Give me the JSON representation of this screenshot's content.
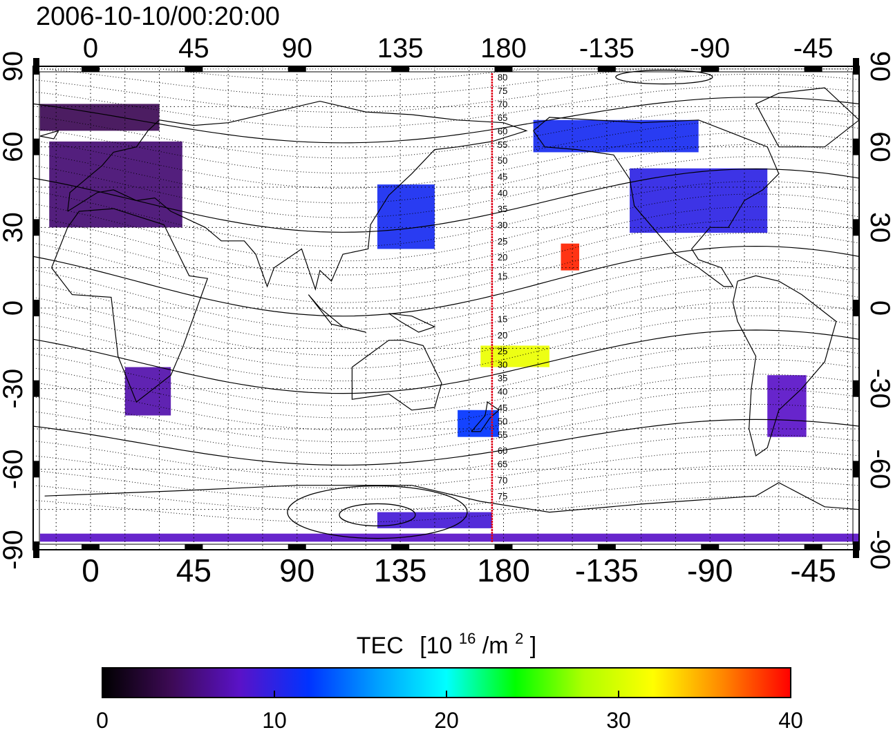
{
  "timestamp": "2006-10-10/00:20:00",
  "map": {
    "lon_range": [
      -25,
      335
    ],
    "lat_range": [
      -90,
      90
    ],
    "lon_ticks": [
      {
        "lon": 0,
        "label": "0"
      },
      {
        "lon": 45,
        "label": "45"
      },
      {
        "lon": 90,
        "label": "90"
      },
      {
        "lon": 135,
        "label": "135"
      },
      {
        "lon": 180,
        "label": "180"
      },
      {
        "lon": 225,
        "label": "-135"
      },
      {
        "lon": 270,
        "label": "-90"
      },
      {
        "lon": 315,
        "label": "-45"
      }
    ],
    "lat_ticks": [
      {
        "lat": 90,
        "label": "90"
      },
      {
        "lat": 60,
        "label": "60"
      },
      {
        "lat": 30,
        "label": "30"
      },
      {
        "lat": 0,
        "label": "0"
      },
      {
        "lat": -30,
        "label": "-30"
      },
      {
        "lat": -60,
        "label": "-60"
      },
      {
        "lat": -90,
        "label": "-90"
      }
    ],
    "grid_dotted": true,
    "meridian_lon": 175,
    "meridian_color": "#e0001a",
    "contour_labels": [
      {
        "lat": 86,
        "label": "80"
      },
      {
        "lat": 81,
        "label": "75"
      },
      {
        "lat": 76,
        "label": "70"
      },
      {
        "lat": 71,
        "label": "65"
      },
      {
        "lat": 66,
        "label": "60"
      },
      {
        "lat": 61,
        "label": "55"
      },
      {
        "lat": 55,
        "label": "50"
      },
      {
        "lat": 49,
        "label": "45"
      },
      {
        "lat": 43,
        "label": "40"
      },
      {
        "lat": 37,
        "label": "35"
      },
      {
        "lat": 31,
        "label": "30"
      },
      {
        "lat": 25,
        "label": "25"
      },
      {
        "lat": 19,
        "label": "20"
      },
      {
        "lat": 12,
        "label": "15"
      },
      {
        "lat": -4,
        "label": "15"
      },
      {
        "lat": -10,
        "label": "20"
      },
      {
        "lat": -16,
        "label": "25"
      },
      {
        "lat": -21,
        "label": "30"
      },
      {
        "lat": -26,
        "label": "35"
      },
      {
        "lat": -31,
        "label": "40"
      },
      {
        "lat": -37,
        "label": "45"
      },
      {
        "lat": -42,
        "label": "50"
      },
      {
        "lat": -47,
        "label": "55"
      },
      {
        "lat": -53,
        "label": "60"
      },
      {
        "lat": -58,
        "label": "65"
      },
      {
        "lat": -64,
        "label": "70"
      },
      {
        "lat": -70,
        "label": "75"
      }
    ],
    "tec_regions": [
      {
        "lon": [
          -18,
          40
        ],
        "lat": [
          30,
          62
        ],
        "tec": 5
      },
      {
        "lon": [
          -22,
          30
        ],
        "lat": [
          66,
          76
        ],
        "tec": 4
      },
      {
        "lon": [
          15,
          35
        ],
        "lat": [
          -40,
          -22
        ],
        "tec": 7
      },
      {
        "lon": [
          125,
          150
        ],
        "lat": [
          22,
          46
        ],
        "tec": 11
      },
      {
        "lon": [
          193,
          265
        ],
        "lat": [
          58,
          70
        ],
        "tec": 11
      },
      {
        "lon": [
          235,
          295
        ],
        "lat": [
          28,
          52
        ],
        "tec": 10
      },
      {
        "lon": [
          160,
          178
        ],
        "lat": [
          -48,
          -38
        ],
        "tec": 12
      },
      {
        "lon": [
          295,
          312
        ],
        "lat": [
          -48,
          -25
        ],
        "tec": 8
      },
      {
        "lon": [
          -22,
          335
        ],
        "lat": [
          -87,
          -84
        ],
        "tec": 8
      },
      {
        "lon": [
          125,
          175
        ],
        "lat": [
          -82,
          -76
        ],
        "tec": 9
      },
      {
        "lon": [
          205,
          213
        ],
        "lat": [
          14,
          24
        ],
        "tec": 39
      },
      {
        "lon": [
          170,
          200
        ],
        "lat": [
          -22,
          -14
        ],
        "tec": 31
      }
    ]
  },
  "colorbar": {
    "title_main": "TEC",
    "title_unit_open": "[10",
    "title_unit_exp": "16",
    "title_unit_mid": "/m",
    "title_unit_exp2": "2",
    "title_unit_close": "]",
    "min": 0,
    "max": 40,
    "ticks": [
      "0",
      "10",
      "20",
      "30",
      "40"
    ],
    "stops": [
      "#000000",
      "#3d0a55",
      "#5a12c8",
      "#0033ff",
      "#00a0ff",
      "#00ffff",
      "#00ff00",
      "#b0ff00",
      "#ffff00",
      "#ff8800",
      "#ff0000"
    ]
  }
}
